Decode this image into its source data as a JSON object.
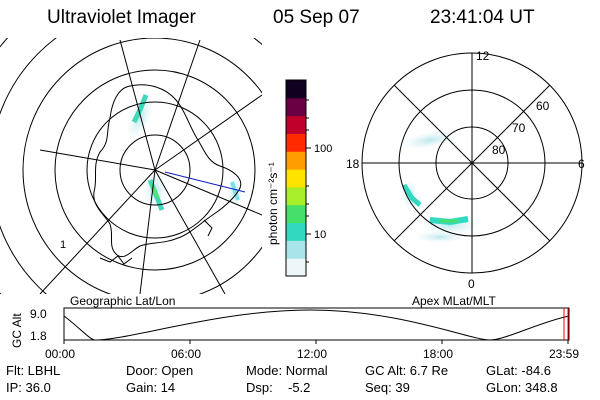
{
  "header": {
    "instrument": "Ultraviolet Imager",
    "date": "05 Sep 07",
    "time": "23:41:04 UT"
  },
  "panels": {
    "left_caption": "Geographic Lat/Lon",
    "right_caption": "Apex MLat/MLT",
    "left_ring_label": "1",
    "right_ring_labels": [
      "80",
      "70",
      "60"
    ],
    "right_mlt_labels": {
      "top": "12",
      "left": "18",
      "right": "6",
      "bottom": "0"
    }
  },
  "colorbar": {
    "unit_label": "photon cm⁻²s⁻¹",
    "ticks": [
      "100",
      "10"
    ],
    "scale": "log",
    "colors": [
      "#eef6f8",
      "#a8e4ea",
      "#33d8c0",
      "#44e06a",
      "#a8ee2a",
      "#ffe400",
      "#ff9d00",
      "#ff2a00",
      "#c0002a",
      "#6a0044",
      "#120020"
    ]
  },
  "altitude_plot": {
    "ylabel": "GC Alt",
    "yticks": [
      "9.0",
      "1.8"
    ],
    "xticks": [
      "00:00",
      "06:00",
      "12:00",
      "18:00",
      "23:59"
    ],
    "cursor_color": "#ff0000"
  },
  "info": {
    "row1": {
      "filter": "Flt: LBHL",
      "door": "Door: Open",
      "mode": "Mode: Normal",
      "gc_alt": "GC Alt: 6.7 Re",
      "glat": "GLat: -84.6"
    },
    "row2": {
      "ip": "IP: 36.0",
      "gain": "Gain: 14",
      "dsp_label": "Dsp:",
      "dsp_value": "-5.2",
      "seq": "Seq: 39",
      "glon": "GLon: 348.8"
    }
  }
}
